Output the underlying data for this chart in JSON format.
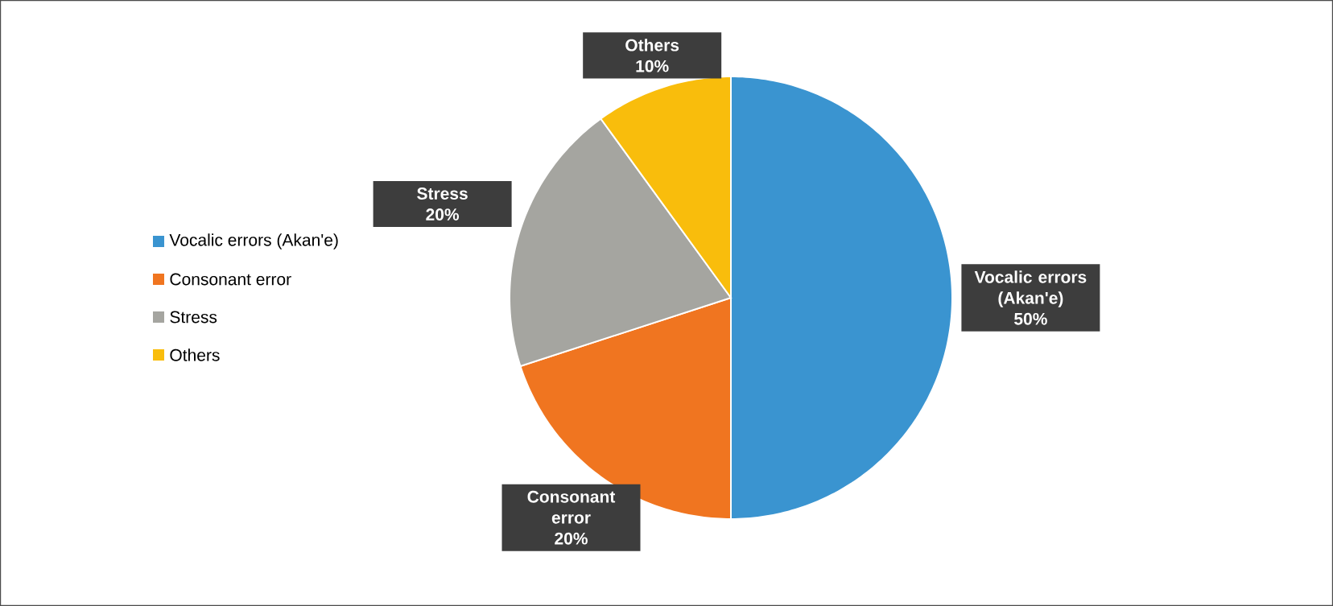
{
  "chart_data": {
    "type": "pie",
    "categories": [
      "Vocalic errors (Akan'e)",
      "Consonant error",
      "Stress",
      "Others"
    ],
    "values": [
      50,
      20,
      20,
      10
    ],
    "value_labels": [
      "50%",
      "20%",
      "20%",
      "10%"
    ],
    "colors": [
      "#3a94d0",
      "#f07520",
      "#a5a5a0",
      "#f9bd0c"
    ],
    "legend": "left"
  }
}
